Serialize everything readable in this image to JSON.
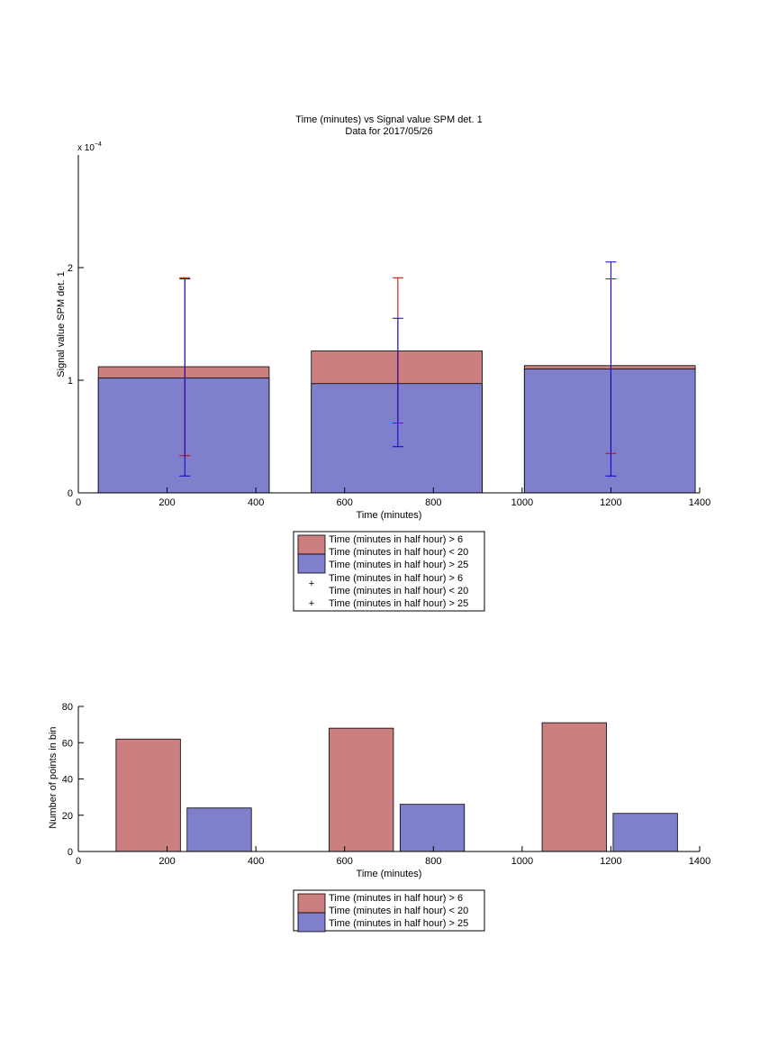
{
  "chart_data": [
    {
      "type": "bar",
      "title": "Time (minutes) vs Signal value SPM det. 1",
      "subtitle": "Data for 2017/05/26",
      "xlabel": "Time (minutes)",
      "ylabel": "Signal value SPM det. 1",
      "exponent_label": "x 10",
      "exponent_power": "−4",
      "xlim": [
        0,
        1400
      ],
      "ylim": [
        0,
        3.0
      ],
      "xticks": [
        "0",
        "200",
        "400",
        "600",
        "800",
        "1000",
        "1200",
        "1400"
      ],
      "yticks": [
        "0",
        "1",
        "2"
      ],
      "bars": [
        {
          "x0": 45,
          "x1": 430,
          "red_top": 1.12,
          "blue_top": 1.02
        },
        {
          "x0": 525,
          "x1": 910,
          "red_top": 1.26,
          "blue_top": 0.97
        },
        {
          "x0": 1005,
          "x1": 1390,
          "red_top": 1.13,
          "blue_top": 1.1
        }
      ],
      "errorbars": [
        {
          "series": "red",
          "x": 240,
          "low": 0.33,
          "high": 1.91
        },
        {
          "series": "blue",
          "x": 240,
          "low": 0.15,
          "high": 1.9
        },
        {
          "series": "red",
          "x": 720,
          "low": 0.62,
          "high": 1.91
        },
        {
          "series": "blue",
          "x": 720,
          "low": 0.41,
          "high": 1.55
        },
        {
          "series": "red",
          "x": 1200,
          "low": 0.35,
          "high": 1.9
        },
        {
          "series": "blue",
          "x": 1200,
          "low": 0.15,
          "high": 2.05
        }
      ],
      "legend": {
        "placement": "below",
        "entries": [
          {
            "kind": "patch",
            "color": "#cc7f7f",
            "lines": [
              "Time (minutes in half hour) > 6",
              "Time (minutes in half hour) < 20"
            ]
          },
          {
            "kind": "patch",
            "color": "#7f7fcc",
            "lines": [
              "Time (minutes in half hour) > 25"
            ]
          },
          {
            "kind": "marker",
            "color": "#cc0000",
            "lines": [
              "Time (minutes in half hour) > 6",
              "Time (minutes in half hour) < 20"
            ]
          },
          {
            "kind": "marker",
            "color": "#0000cc",
            "lines": [
              "Time (minutes in half hour) > 25"
            ]
          }
        ]
      },
      "colors": {
        "red_fill": "#cc7f7f",
        "blue_fill": "#7f7fcc",
        "red_err": "#cc0000",
        "blue_err": "#0000cc"
      }
    },
    {
      "type": "bar",
      "xlabel": "Time (minutes)",
      "ylabel": "Number of points in bin",
      "xlim": [
        0,
        1400
      ],
      "ylim": [
        0,
        80
      ],
      "xticks": [
        "0",
        "200",
        "400",
        "600",
        "800",
        "1000",
        "1200",
        "1400"
      ],
      "yticks": [
        "0",
        "20",
        "40",
        "60",
        "80"
      ],
      "bars": [
        {
          "series": "red",
          "x0": 85,
          "x1": 230,
          "value": 62
        },
        {
          "series": "blue",
          "x0": 245,
          "x1": 390,
          "value": 24
        },
        {
          "series": "red",
          "x0": 565,
          "x1": 710,
          "value": 68
        },
        {
          "series": "blue",
          "x0": 725,
          "x1": 870,
          "value": 26
        },
        {
          "series": "red",
          "x0": 1045,
          "x1": 1190,
          "value": 71
        },
        {
          "series": "blue",
          "x0": 1205,
          "x1": 1350,
          "value": 21
        }
      ],
      "legend": {
        "placement": "below",
        "entries": [
          {
            "kind": "patch",
            "color": "#cc7f7f",
            "lines": [
              "Time (minutes in half hour) > 6",
              "Time (minutes in half hour) < 20"
            ]
          },
          {
            "kind": "patch",
            "color": "#7f7fcc",
            "lines": [
              "Time (minutes in half hour) > 25"
            ]
          }
        ]
      },
      "colors": {
        "red_fill": "#cc7f7f",
        "blue_fill": "#7f7fcc"
      }
    }
  ]
}
